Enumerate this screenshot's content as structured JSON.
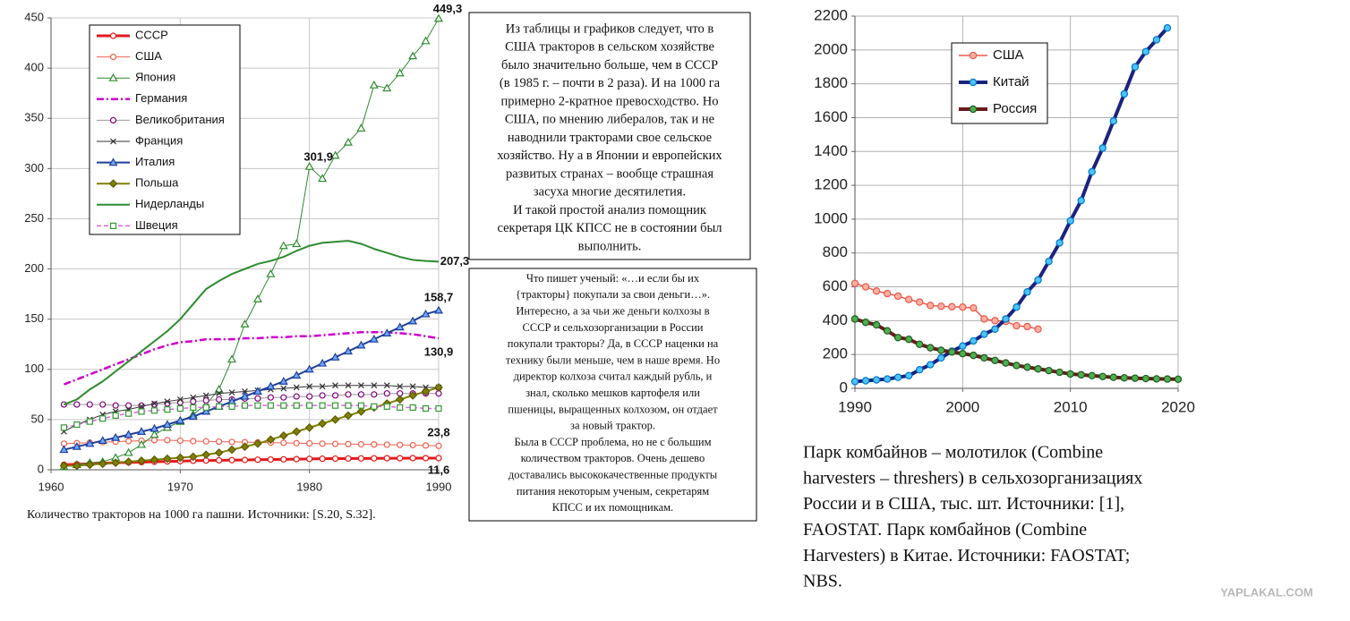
{
  "chart_data": [
    {
      "type": "line",
      "caption": [
        "Количество тракторов на 1000 га пашни. Источники: [S.20, S.32]."
      ],
      "x": [
        1961,
        1962,
        1963,
        1964,
        1965,
        1966,
        1967,
        1968,
        1969,
        1970,
        1971,
        1972,
        1973,
        1974,
        1975,
        1976,
        1977,
        1978,
        1979,
        1980,
        1981,
        1982,
        1983,
        1984,
        1985,
        1986,
        1987,
        1988,
        1989,
        1990
      ],
      "xlim": [
        1960,
        1990
      ],
      "xticks": [
        1960,
        1970,
        1980,
        1990
      ],
      "ylim": [
        0,
        450
      ],
      "yticks": [
        0,
        50,
        100,
        150,
        200,
        250,
        300,
        350,
        400,
        450
      ],
      "grid": true,
      "legend": "upper left",
      "series": [
        {
          "name": "СССР",
          "color": "#e41a1c",
          "line_width": 3,
          "marker": "circle",
          "marker_color": "#e41a1c",
          "marker_fill": "#ffffff",
          "values": [
            5,
            5.5,
            6,
            6.5,
            7,
            7.3,
            7.6,
            8,
            8.3,
            8.6,
            9,
            9.2,
            9.4,
            9.6,
            9.8,
            10,
            10.2,
            10.4,
            10.6,
            10.8,
            11,
            11.1,
            11.2,
            11.3,
            11.4,
            11.5,
            11.5,
            11.6,
            11.6,
            11.6
          ],
          "value_labels": [
            null,
            null,
            null,
            null,
            null,
            null,
            null,
            null,
            null,
            null,
            null,
            null,
            null,
            null,
            null,
            null,
            null,
            null,
            null,
            null,
            null,
            null,
            null,
            null,
            null,
            null,
            null,
            null,
            null,
            "11,6"
          ]
        },
        {
          "name": "США",
          "color": "#f06050",
          "line_width": 1,
          "marker": "circle",
          "marker_color": "#f06050",
          "marker_fill": "#ffffff",
          "values": [
            26,
            26.5,
            27,
            27.5,
            28,
            28.5,
            29,
            29.5,
            29.5,
            29,
            28.5,
            28.3,
            28,
            27.8,
            27.5,
            27.3,
            27,
            26.8,
            26.5,
            26.3,
            26,
            25.8,
            25.6,
            25.4,
            25.2,
            25,
            24.8,
            24.5,
            24.2,
            23.8
          ],
          "value_labels": [
            null,
            null,
            null,
            null,
            null,
            null,
            null,
            null,
            null,
            null,
            null,
            null,
            null,
            null,
            null,
            null,
            null,
            null,
            null,
            null,
            null,
            null,
            null,
            null,
            null,
            null,
            null,
            null,
            null,
            "23,8"
          ]
        },
        {
          "name": "Япония",
          "color": "#2e8b2e",
          "line_width": 1,
          "marker": "triangle",
          "marker_color": "#2e8b2e",
          "marker_fill": "#ffffff",
          "values": [
            3,
            5,
            7,
            8,
            12,
            17,
            25,
            35,
            42,
            48,
            55,
            65,
            80,
            110,
            145,
            170,
            195,
            223,
            225,
            301.9,
            290,
            313,
            326,
            340,
            383,
            380,
            395,
            412,
            427,
            449.3
          ],
          "value_labels": [
            null,
            null,
            null,
            null,
            null,
            null,
            null,
            null,
            null,
            null,
            null,
            null,
            null,
            null,
            null,
            null,
            null,
            null,
            null,
            "301,9",
            null,
            null,
            null,
            null,
            null,
            null,
            null,
            null,
            null,
            "449,3"
          ]
        },
        {
          "name": "Германия",
          "color": "#cc00cc",
          "line_width": 2.5,
          "dash": "8,3,2,3",
          "marker": "none",
          "marker_color": "#cc00cc",
          "marker_fill": "#cc00cc",
          "values": [
            85,
            90,
            95,
            100,
            105,
            110,
            115,
            120,
            124,
            127,
            128,
            130,
            130,
            130,
            131,
            131,
            132,
            132,
            133,
            133,
            134,
            135,
            136,
            137,
            137,
            137,
            136,
            135,
            133,
            130.9
          ],
          "value_labels": [
            null,
            null,
            null,
            null,
            null,
            null,
            null,
            null,
            null,
            null,
            null,
            null,
            null,
            null,
            null,
            null,
            null,
            null,
            null,
            null,
            null,
            null,
            null,
            null,
            null,
            null,
            null,
            null,
            null,
            "130,9"
          ]
        },
        {
          "name": "Великобритания",
          "color": "#999999",
          "line_width": 1,
          "marker": "circle",
          "marker_color": "#800080",
          "marker_fill": "#ffffff",
          "values": [
            65,
            65,
            65,
            65,
            64,
            64,
            64,
            65,
            66,
            67,
            68,
            69,
            70,
            70,
            71,
            71,
            72,
            72,
            73,
            73,
            74,
            74,
            75,
            75,
            75,
            76,
            76,
            76,
            76,
            76
          ]
        },
        {
          "name": "Франция",
          "color": "#333333",
          "line_width": 1,
          "marker": "x",
          "marker_color": "#333333",
          "marker_fill": "#333333",
          "values": [
            38,
            45,
            50,
            55,
            58,
            60,
            63,
            66,
            68,
            70,
            72,
            74,
            76,
            77,
            78,
            79,
            80,
            81,
            82,
            83,
            83,
            84,
            84,
            84,
            84,
            84,
            83,
            83,
            82,
            82
          ]
        },
        {
          "name": "Италия",
          "color": "#1f3f99",
          "line_width": 2,
          "marker": "triangle",
          "marker_color": "#1f3f99",
          "marker_fill": "#6fa8ff",
          "values": [
            20,
            23,
            26,
            29,
            32,
            35,
            38,
            41,
            45,
            49,
            53,
            58,
            63,
            68,
            73,
            78,
            83,
            88,
            94,
            100,
            106,
            112,
            118,
            124,
            130,
            136,
            142,
            148,
            155,
            158.7
          ],
          "value_labels": [
            null,
            null,
            null,
            null,
            null,
            null,
            null,
            null,
            null,
            null,
            null,
            null,
            null,
            null,
            null,
            null,
            null,
            null,
            null,
            null,
            null,
            null,
            null,
            null,
            null,
            null,
            null,
            null,
            null,
            "158,7"
          ]
        },
        {
          "name": "Польша",
          "color": "#808000",
          "line_width": 2,
          "marker": "diamond",
          "marker_color": "#5a5a00",
          "marker_fill": "#808000",
          "values": [
            4,
            4,
            5,
            6,
            7,
            8,
            9,
            10,
            11,
            12,
            13,
            15,
            17,
            20,
            23,
            26,
            30,
            34,
            38,
            42,
            46,
            50,
            54,
            58,
            62,
            66,
            70,
            74,
            78,
            82
          ]
        },
        {
          "name": "Нидерланды",
          "color": "#2e8b2e",
          "line_width": 2,
          "marker": "none",
          "marker_color": "#2e8b2e",
          "marker_fill": "#2e8b2e",
          "values": [
            65,
            70,
            80,
            88,
            98,
            108,
            118,
            128,
            138,
            150,
            165,
            180,
            188,
            195,
            200,
            205,
            208,
            212,
            218,
            223,
            226,
            227,
            228,
            225,
            220,
            216,
            212,
            209,
            208,
            207.3
          ],
          "value_labels": [
            null,
            null,
            null,
            null,
            null,
            null,
            null,
            null,
            null,
            null,
            null,
            null,
            null,
            null,
            null,
            null,
            null,
            null,
            null,
            null,
            null,
            null,
            null,
            null,
            null,
            null,
            null,
            null,
            null,
            "207,3"
          ]
        },
        {
          "name": "Швеция",
          "color": "#dd66dd",
          "line_width": 1.5,
          "dash": "5,3",
          "marker": "square",
          "marker_color": "#339933",
          "marker_fill": "#ffffff",
          "values": [
            42,
            45,
            48,
            51,
            54,
            56,
            58,
            59,
            60,
            61,
            62,
            62,
            63,
            63,
            64,
            64,
            64,
            64,
            64,
            64,
            64,
            64,
            64,
            64,
            63,
            63,
            62,
            62,
            61,
            61
          ]
        }
      ]
    },
    {
      "type": "line",
      "caption": [
        "Парк комбайнов – молотилок (Combine",
        "harvesters – threshers) в сельхозорганизациях",
        "России и в США, тыс. шт. Источники: [1],",
        "FAOSTAT. Парк комбайнов (Combine",
        "Harvesters) в Китае. Источники: FAOSTAT;",
        "NBS."
      ],
      "x": [
        1990,
        1991,
        1992,
        1993,
        1994,
        1995,
        1996,
        1997,
        1998,
        1999,
        2000,
        2001,
        2002,
        2003,
        2004,
        2005,
        2006,
        2007,
        2008,
        2009,
        2010,
        2011,
        2012,
        2013,
        2014,
        2015,
        2016,
        2017,
        2018,
        2019,
        2020
      ],
      "xlim": [
        1990,
        2020
      ],
      "xticks": [
        1990,
        2000,
        2010,
        2020
      ],
      "ylim": [
        0,
        2200
      ],
      "yticks": [
        0,
        200,
        400,
        600,
        800,
        1000,
        1200,
        1400,
        1600,
        1800,
        2000,
        2200
      ],
      "grid": true,
      "legend": "upper left",
      "series": [
        {
          "name": "США",
          "color": "#e85a4f",
          "line_width": 1.5,
          "marker": "circle",
          "marker_color": "#e85a4f",
          "marker_fill": "#ffb0a0",
          "values": [
            620,
            600,
            575,
            560,
            545,
            525,
            510,
            490,
            485,
            482,
            480,
            475,
            410,
            400,
            395,
            370,
            365,
            350,
            null,
            null,
            null,
            null,
            null,
            null,
            null,
            null,
            null,
            null,
            null,
            null,
            null
          ]
        },
        {
          "name": "Китай",
          "color": "#1a237e",
          "line_width": 4,
          "marker": "circle",
          "marker_color": "#0077cc",
          "marker_fill": "#4fc3f7",
          "values": [
            40,
            45,
            50,
            55,
            65,
            75,
            110,
            140,
            180,
            220,
            250,
            280,
            320,
            350,
            410,
            480,
            570,
            640,
            750,
            860,
            990,
            1110,
            1280,
            1420,
            1580,
            1740,
            1900,
            1990,
            2060,
            2130,
            null
          ]
        },
        {
          "name": "Россия",
          "color": "#6b1a1a",
          "line_width": 4,
          "marker": "circle",
          "marker_color": "#1b5e20",
          "marker_fill": "#4caf50",
          "values": [
            410,
            390,
            375,
            340,
            300,
            290,
            260,
            240,
            225,
            215,
            205,
            195,
            180,
            165,
            150,
            135,
            125,
            115,
            105,
            95,
            85,
            80,
            75,
            70,
            65,
            62,
            60,
            58,
            56,
            55,
            54
          ]
        }
      ]
    }
  ],
  "text_boxes": [
    {
      "lines": [
        "Из таблицы и графиков следует, что в",
        "США тракторов в сельском хозяйстве",
        "было значительно больше, чем в СССР",
        "(в 1985 г. – почти в 2 раза). И на 1000 га",
        "примерно 2-кратное превосходство. Но",
        "США, по мнению либералов, так и не",
        "наводнили тракторами свое сельское",
        "хозяйство. Ну а в Японии и европейских",
        "развитых странах – вообще страшная",
        "засуха многие десятилетия.",
        "И такой простой анализ помощник",
        "секретаря ЦК КПСС не в состоянии был",
        "выполнить."
      ]
    },
    {
      "lines": [
        "Что пишет ученый: «…и если бы их",
        "{тракторы} покупали за свои деньги…».",
        "Интересно, а за чьи  же деньги колхозы в",
        "СССР  и сельхозорганизации в России",
        "покупали тракторы? Да, в СССР наценки на",
        "технику были меньше, чем в наше время. Но",
        "директор колхоза  считал каждый рубль, и",
        "знал, сколько мешков картофеля или",
        "пшеницы, выращенных колхозом,  он отдает",
        "за новый трактор.",
        "Была в СССР проблема, но не с большим",
        "количеством тракторов.  Очень дешево",
        "доставались  высококачественные продукты",
        "питания некоторым  ученым, секретарям",
        "КПСС и их помощникам."
      ]
    }
  ],
  "watermark": "YAPLAKAL.COM"
}
